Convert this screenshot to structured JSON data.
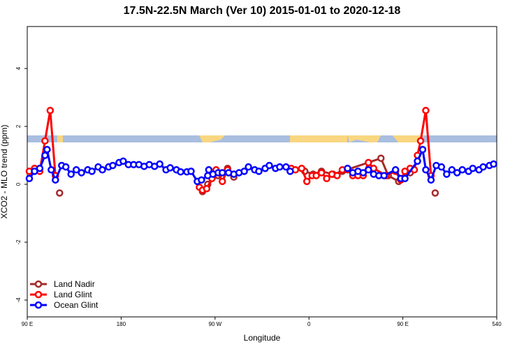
{
  "chart_data": {
    "type": "line",
    "title": "17.5N-22.5N March (Ver 10)   2015-01-01 to 2020-12-18",
    "x_label": "Longitude",
    "y_label": "XCO2 - MLO trend (ppm)",
    "xlim": [
      90,
      540
    ],
    "ylim": [
      -4.58,
      5.45
    ],
    "xticks": [
      {
        "value": 90,
        "label": "90 E"
      },
      180,
      {
        "value": 270,
        "label": "90 W"
      },
      {
        "value": 360,
        "label": "0"
      },
      {
        "value": 450,
        "label": "90 E"
      },
      540
    ],
    "yticks": [
      -4,
      -2,
      0,
      2,
      4
    ],
    "legend": "bottom-left",
    "series": [
      {
        "name": "Land Nadir",
        "color": "#a52a2a",
        "x": [
          121,
          null,
          258,
          263,
          273,
          282,
          288,
          null,
          356,
          364,
          372,
          383,
          392,
          429,
          436,
          446,
          457,
          null,
          481
        ],
        "values": [
          -0.3,
          null,
          -0.25,
          0,
          0.3,
          0.55,
          0.25,
          null,
          0.45,
          0.35,
          0.45,
          0.35,
          0.45,
          0.9,
          0.3,
          0.1,
          0.4,
          null,
          -0.3
        ]
      },
      {
        "name": "Land Glint",
        "color": "#ff0000",
        "x": [
          92,
          97,
          102,
          107,
          112,
          117,
          null,
          255,
          258,
          262,
          267,
          271,
          277,
          282,
          null,
          343,
          347,
          353,
          358,
          363,
          367,
          372,
          377,
          382,
          387,
          392,
          397,
          402,
          407,
          412,
          417,
          422,
          434,
          443,
          448,
          452,
          457,
          461,
          464,
          467,
          472,
          477
        ],
        "values": [
          0.45,
          0.55,
          0.45,
          1.5,
          2.55,
          0.3,
          null,
          -0.1,
          -0.2,
          -0.15,
          0.2,
          0.5,
          0.1,
          0.5,
          null,
          0.55,
          0.5,
          0.55,
          0.1,
          0.3,
          0.3,
          0.4,
          0.2,
          0.35,
          0.3,
          0.5,
          0.5,
          0.3,
          0.3,
          0.3,
          0.75,
          0.55,
          0.3,
          0.45,
          0.15,
          0.45,
          0.55,
          0.5,
          1.0,
          1.5,
          2.55,
          0.3
        ]
      },
      {
        "name": "Ocean Glint",
        "color": "#0000ff",
        "x": [
          92,
          97,
          102,
          107,
          109,
          113,
          117,
          123,
          127,
          132,
          137,
          142,
          148,
          152,
          158,
          162,
          168,
          172,
          178,
          182,
          187,
          192,
          197,
          202,
          207,
          212,
          217,
          223,
          227,
          233,
          237,
          243,
          247,
          253,
          257,
          263,
          264,
          268,
          273,
          277,
          283,
          288,
          293,
          298,
          302,
          308,
          312,
          318,
          322,
          328,
          332,
          338,
          342,
          null,
          397,
          402,
          407,
          412,
          417,
          422,
          427,
          432,
          443,
          448,
          452,
          464,
          469,
          472,
          477,
          482,
          487,
          492,
          497,
          502,
          507,
          513,
          517,
          523,
          527,
          533,
          537
        ],
        "values": [
          0.2,
          0.45,
          0.55,
          1.0,
          1.2,
          0.5,
          0.15,
          0.65,
          0.6,
          0.35,
          0.5,
          0.4,
          0.5,
          0.45,
          0.6,
          0.5,
          0.6,
          0.65,
          0.75,
          0.8,
          0.68,
          0.68,
          0.68,
          0.62,
          0.68,
          0.62,
          0.7,
          0.5,
          0.57,
          0.5,
          0.43,
          0.43,
          0.45,
          0.1,
          0.15,
          0.3,
          0.5,
          0.35,
          0.4,
          0.4,
          0.4,
          0.35,
          0.4,
          0.45,
          0.6,
          0.5,
          0.45,
          0.55,
          0.65,
          0.55,
          0.6,
          0.6,
          0.45,
          null,
          0.55,
          0.4,
          0.45,
          0.4,
          0.5,
          0.35,
          0.3,
          0.3,
          0.5,
          0.2,
          0.2,
          0.8,
          1.2,
          0.5,
          0.15,
          0.65,
          0.6,
          0.35,
          0.5,
          0.4,
          0.5,
          0.45,
          0.55,
          0.5,
          0.6,
          0.65,
          0.7
        ]
      }
    ]
  }
}
